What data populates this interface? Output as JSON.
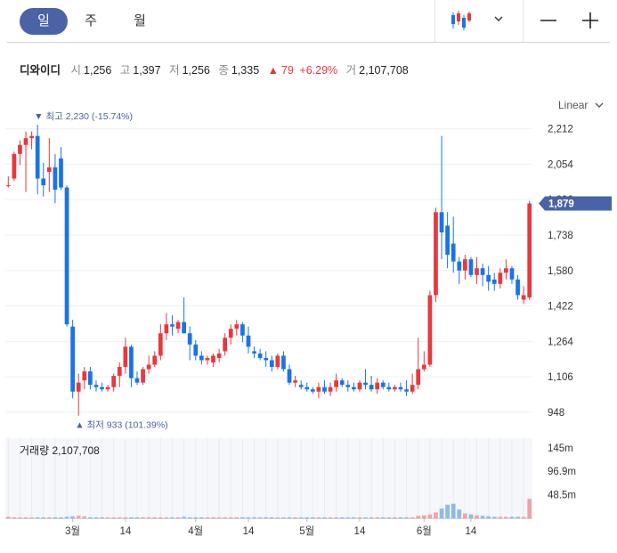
{
  "period_tabs": [
    {
      "label": "일",
      "active": true
    },
    {
      "label": "주",
      "active": false
    },
    {
      "label": "월",
      "active": false
    }
  ],
  "toolbar": {
    "chart_type_icon": "candlestick-icon",
    "dropdown_icon": "chevron-down-icon",
    "zoom_out_icon": "minus-icon",
    "zoom_in_icon": "plus-icon"
  },
  "summary": {
    "name": "디와이디",
    "open_label": "시",
    "open": "1,256",
    "high_label": "고",
    "high": "1,397",
    "low_label": "저",
    "low": "1,256",
    "close_label": "종",
    "close": "1,335",
    "change_arrow": "▲",
    "change": "79",
    "change_pct": "+6.29%",
    "volume_label": "거",
    "volume": "2,107,708"
  },
  "scale_selector": {
    "label": "Linear"
  },
  "annotations": {
    "max_label": "▼ 최고 2,230 (-15.74%)",
    "min_label": "▲ 최저 933 (101.39%)"
  },
  "current_price_tag": "1,879",
  "volume_panel_title": "거래량 2,107,708",
  "colors": {
    "up": "#e8383d",
    "down": "#1a73e8",
    "accent": "#4a63a6",
    "tag": "#4a63a6"
  },
  "chart_data": [
    {
      "type": "candlestick",
      "y_ticks": [
        "2,212",
        "2,054",
        "1,896",
        "1,738",
        "1,580",
        "1,422",
        "1,264",
        "1,106",
        "948"
      ],
      "y_tick_values": [
        2212,
        2054,
        1896,
        1738,
        1580,
        1422,
        1264,
        1106,
        948
      ],
      "ylim": [
        900,
        2270
      ],
      "x_tick_labels": [
        {
          "label": "3월",
          "index": 11
        },
        {
          "label": "14",
          "index": 20
        },
        {
          "label": "4월",
          "index": 32
        },
        {
          "label": "14",
          "index": 41
        },
        {
          "label": "5월",
          "index": 51
        },
        {
          "label": "14",
          "index": 60
        },
        {
          "label": "6월",
          "index": 71
        },
        {
          "label": "14",
          "index": 79
        }
      ],
      "ohlc": [
        [
          1960,
          2000,
          1950,
          1960
        ],
        [
          1990,
          2110,
          1980,
          2100
        ],
        [
          2100,
          2160,
          2050,
          2140
        ],
        [
          2140,
          2200,
          1930,
          2170
        ],
        [
          2170,
          2200,
          2120,
          2180
        ],
        [
          2180,
          2230,
          1920,
          1990
        ],
        [
          1990,
          2060,
          1910,
          1960
        ],
        [
          2020,
          2170,
          1930,
          2040
        ],
        [
          2040,
          2100,
          1880,
          1940
        ],
        [
          2080,
          2130,
          1940,
          1950
        ],
        [
          1950,
          1960,
          1330,
          1340
        ],
        [
          1330,
          1360,
          1010,
          1040
        ],
        [
          1040,
          1120,
          933,
          1080
        ],
        [
          1090,
          1150,
          1050,
          1130
        ],
        [
          1130,
          1150,
          1050,
          1070
        ],
        [
          1070,
          1090,
          1040,
          1060
        ],
        [
          1060,
          1080,
          1040,
          1050
        ],
        [
          1050,
          1070,
          1040,
          1060
        ],
        [
          1060,
          1120,
          1040,
          1110
        ],
        [
          1110,
          1170,
          1060,
          1150
        ],
        [
          1150,
          1280,
          1120,
          1240
        ],
        [
          1240,
          1250,
          1060,
          1100
        ],
        [
          1100,
          1130,
          1070,
          1080
        ],
        [
          1080,
          1150,
          1070,
          1140
        ],
        [
          1140,
          1200,
          1120,
          1160
        ],
        [
          1160,
          1220,
          1150,
          1200
        ],
        [
          1200,
          1340,
          1180,
          1300
        ],
        [
          1300,
          1390,
          1270,
          1340
        ],
        [
          1340,
          1380,
          1290,
          1330
        ],
        [
          1320,
          1360,
          1300,
          1350
        ],
        [
          1350,
          1460,
          1300,
          1300
        ],
        [
          1300,
          1330,
          1180,
          1250
        ],
        [
          1250,
          1270,
          1180,
          1200
        ],
        [
          1200,
          1220,
          1160,
          1180
        ],
        [
          1180,
          1200,
          1160,
          1190
        ],
        [
          1170,
          1210,
          1150,
          1200
        ],
        [
          1190,
          1230,
          1170,
          1210
        ],
        [
          1220,
          1300,
          1200,
          1280
        ],
        [
          1280,
          1340,
          1250,
          1320
        ],
        [
          1320,
          1360,
          1290,
          1340
        ],
        [
          1340,
          1350,
          1260,
          1290
        ],
        [
          1290,
          1330,
          1210,
          1240
        ],
        [
          1220,
          1240,
          1190,
          1210
        ],
        [
          1210,
          1230,
          1180,
          1190
        ],
        [
          1190,
          1220,
          1150,
          1180
        ],
        [
          1180,
          1200,
          1130,
          1150
        ],
        [
          1150,
          1210,
          1140,
          1200
        ],
        [
          1200,
          1220,
          1130,
          1140
        ],
        [
          1140,
          1160,
          1070,
          1080
        ],
        [
          1080,
          1110,
          1060,
          1090
        ],
        [
          1070,
          1090,
          1050,
          1060
        ],
        [
          1060,
          1080,
          1040,
          1050
        ],
        [
          1050,
          1060,
          1030,
          1040
        ],
        [
          1040,
          1080,
          1010,
          1060
        ],
        [
          1060,
          1090,
          1030,
          1040
        ],
        [
          1040,
          1080,
          1020,
          1060
        ],
        [
          1060,
          1120,
          1040,
          1090
        ],
        [
          1090,
          1100,
          1060,
          1070
        ],
        [
          1070,
          1090,
          1040,
          1060
        ],
        [
          1060,
          1080,
          1040,
          1050
        ],
        [
          1050,
          1090,
          1040,
          1080
        ],
        [
          1080,
          1140,
          1050,
          1070
        ],
        [
          1070,
          1110,
          1040,
          1050
        ],
        [
          1050,
          1100,
          1030,
          1080
        ],
        [
          1080,
          1090,
          1050,
          1060
        ],
        [
          1060,
          1080,
          1040,
          1050
        ],
        [
          1050,
          1070,
          1040,
          1060
        ],
        [
          1060,
          1080,
          1040,
          1050
        ],
        [
          1050,
          1090,
          1020,
          1040
        ],
        [
          1040,
          1120,
          1030,
          1070
        ],
        [
          1070,
          1280,
          1050,
          1140
        ],
        [
          1140,
          1220,
          1130,
          1160
        ],
        [
          1160,
          1490,
          1150,
          1470
        ],
        [
          1470,
          1860,
          1440,
          1840
        ],
        [
          1840,
          2180,
          1630,
          1750
        ],
        [
          1780,
          1840,
          1590,
          1650
        ],
        [
          1700,
          1820,
          1570,
          1620
        ],
        [
          1620,
          1640,
          1520,
          1580
        ],
        [
          1580,
          1650,
          1540,
          1630
        ],
        [
          1630,
          1640,
          1550,
          1560
        ],
        [
          1560,
          1640,
          1520,
          1590
        ],
        [
          1590,
          1610,
          1510,
          1560
        ],
        [
          1560,
          1600,
          1490,
          1530
        ],
        [
          1540,
          1570,
          1490,
          1520
        ],
        [
          1520,
          1590,
          1500,
          1570
        ],
        [
          1570,
          1630,
          1540,
          1590
        ],
        [
          1590,
          1600,
          1520,
          1540
        ],
        [
          1540,
          1560,
          1450,
          1470
        ],
        [
          1450,
          1510,
          1430,
          1470
        ],
        [
          1460,
          1890,
          1450,
          1879
        ]
      ],
      "volume_ticks": [
        "145m",
        "96.9m",
        "48.5m"
      ],
      "volume_tick_values": [
        145000000,
        96900000,
        48500000
      ],
      "volume_max": 165000000,
      "volume": [
        3,
        2,
        2,
        2,
        2,
        2,
        2,
        2,
        2,
        2,
        3,
        4,
        5,
        4,
        2,
        2,
        2,
        2,
        2,
        2,
        2,
        2,
        2,
        2,
        2,
        2,
        2,
        2,
        2,
        2,
        3,
        2,
        2,
        2,
        2,
        2,
        2,
        2,
        2,
        2,
        2,
        2,
        2,
        2,
        2,
        2,
        2,
        2,
        2,
        2,
        2,
        2,
        2,
        2,
        2,
        2,
        2,
        2,
        2,
        2,
        2,
        2,
        2,
        2,
        2,
        2,
        2,
        2,
        2,
        2,
        5,
        6,
        8,
        12,
        20,
        28,
        30,
        18,
        10,
        8,
        6,
        5,
        4,
        3,
        3,
        3,
        3,
        3,
        3,
        40
      ]
    }
  ]
}
